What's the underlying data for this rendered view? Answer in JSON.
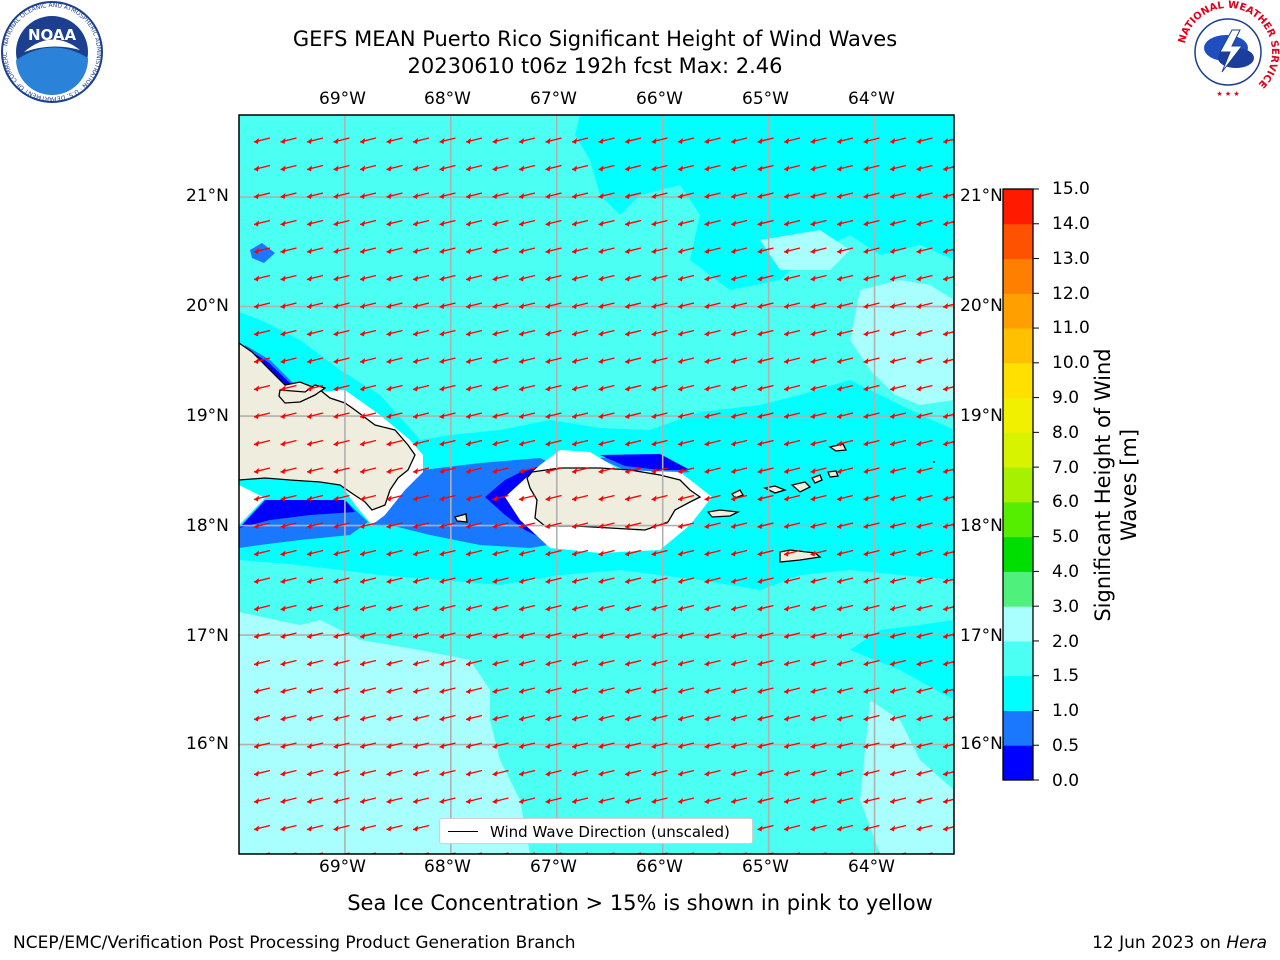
{
  "title_line1": "GEFS MEAN Puerto Rico Significant Height of Wind Waves",
  "title_line2": "20230610 t06z 192h fcst   Max: 2.46",
  "map": {
    "lon_labels": [
      "69°W",
      "68°W",
      "67°W",
      "66°W",
      "65°W",
      "64°W"
    ],
    "lat_labels": [
      "21°N",
      "20°N",
      "19°N",
      "18°N",
      "17°N",
      "16°N"
    ],
    "lon_values": [
      -69,
      -68,
      -67,
      -66,
      -65,
      -64
    ],
    "lat_values": [
      21,
      20,
      19,
      18,
      17,
      16
    ],
    "extent": {
      "lon_min": -70.0,
      "lon_max": -63.25,
      "lat_min": 15.0,
      "lat_max": 21.75
    },
    "arrow_color": "#ff0000",
    "land_color": "#efedde",
    "grid_color": "#b0b0b0"
  },
  "colorbar": {
    "title": "Significant Height of Wind Waves [m]",
    "title_lines": [
      "Significant Height of Wind",
      "Waves [m]"
    ],
    "ticks": [
      "15.0",
      "14.0",
      "13.0",
      "12.0",
      "11.0",
      "10.0",
      "9.0",
      "8.0",
      "7.0",
      "6.0",
      "5.0",
      "4.0",
      "3.0",
      "2.0",
      "1.5",
      "1.0",
      "0.5",
      "0.0"
    ],
    "levels": [
      0.0,
      0.5,
      1.0,
      1.5,
      2.0,
      3.0,
      4.0,
      5.0,
      6.0,
      7.0,
      8.0,
      9.0,
      10.0,
      11.0,
      12.0,
      13.0,
      14.0,
      15.0
    ],
    "colors": [
      "#0000ff",
      "#1a78ff",
      "#00ffff",
      "#4cfff3",
      "#a8fffd",
      "#50f07c",
      "#00dd00",
      "#55ee00",
      "#a6f000",
      "#d7f300",
      "#f0f000",
      "#ffe000",
      "#ffc000",
      "#ffa000",
      "#ff7f00",
      "#ff5200",
      "#ff1a00"
    ]
  },
  "legend": {
    "label": "Wind Wave Direction (unscaled)"
  },
  "footer": {
    "note": "Sea Ice Concentration > 15% is shown in pink to yellow",
    "left": "NCEP/EMC/Verification Post Processing Product Generation Branch",
    "right_prefix": "12 Jun 2023 on ",
    "right_host": "Hera"
  },
  "logos": {
    "noaa_text": "NOAA",
    "noaa_ring_text": "NATIONAL OCEANIC AND ATMOSPHERIC ADMINISTRATION · U.S. DEPARTMENT OF COMMERCE",
    "nws_ring_text": "NATIONAL WEATHER SERVICE"
  }
}
